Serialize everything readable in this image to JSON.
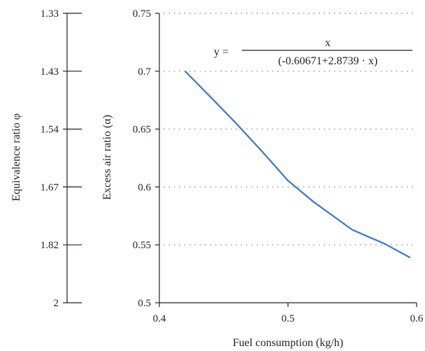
{
  "chart_data": {
    "type": "line",
    "xlabel": "Fuel consumption (kg/h)",
    "ylabel": "Excess air ratio (α)",
    "xlim": [
      0.4,
      0.6
    ],
    "ylim": [
      0.5,
      0.75
    ],
    "x_ticks": [
      "0.4",
      "0.5",
      "0.6"
    ],
    "y_ticks": [
      "0.5",
      "0.55",
      "0.6",
      "0.65",
      "0.7",
      "0.75"
    ],
    "grid": "horizontal-dotted",
    "series": [
      {
        "color": "#4a7ebf",
        "x": [
          0.42,
          0.44,
          0.46,
          0.48,
          0.5,
          0.52,
          0.55,
          0.575,
          0.595
        ],
        "y": [
          0.7,
          0.6775,
          0.6545,
          0.6305,
          0.6055,
          0.587,
          0.563,
          0.551,
          0.539
        ]
      }
    ],
    "equation": {
      "lhs": "y =",
      "numerator": "x",
      "denominator": "(-0.60671+2.8739 · x)"
    },
    "secondary_axis": {
      "label": "Equivalence ratio φ",
      "ticks": [
        "1.33",
        "1.43",
        "1.54",
        "1.67",
        "1.82",
        "2"
      ]
    }
  }
}
